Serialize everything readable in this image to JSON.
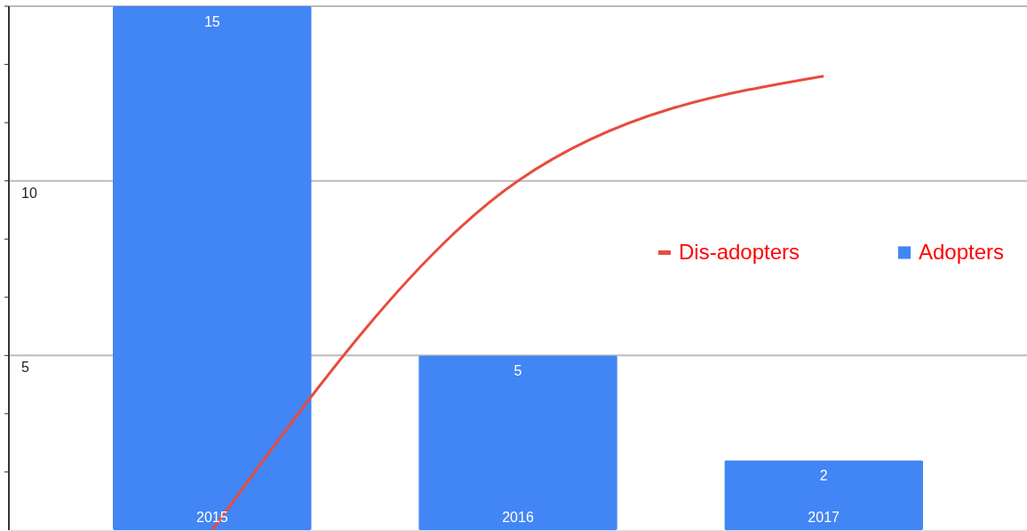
{
  "chart_data": {
    "type": "bar",
    "categories": [
      "2015",
      "2016",
      "2017"
    ],
    "series": [
      {
        "name": "Dis-adopters",
        "type": "line",
        "color": "#e84c3d",
        "values": [
          0,
          10,
          13
        ]
      },
      {
        "name": "Adopters",
        "color": "#4285f4",
        "values": [
          15,
          5,
          2
        ],
        "value_labels": [
          "15",
          "5",
          "2"
        ]
      }
    ],
    "ylim": [
      0,
      15
    ],
    "yticks": [
      {
        "value": 1.667,
        "label": null
      },
      {
        "value": 3.333,
        "label": null
      },
      5,
      {
        "value": 6.667,
        "label": null
      },
      {
        "value": 8.333,
        "label": null
      },
      10,
      {
        "value": 11.667,
        "label": null
      },
      {
        "value": 13.333,
        "label": null
      },
      {
        "value": 15,
        "label": null
      }
    ],
    "grid": "y",
    "legend": "right"
  }
}
